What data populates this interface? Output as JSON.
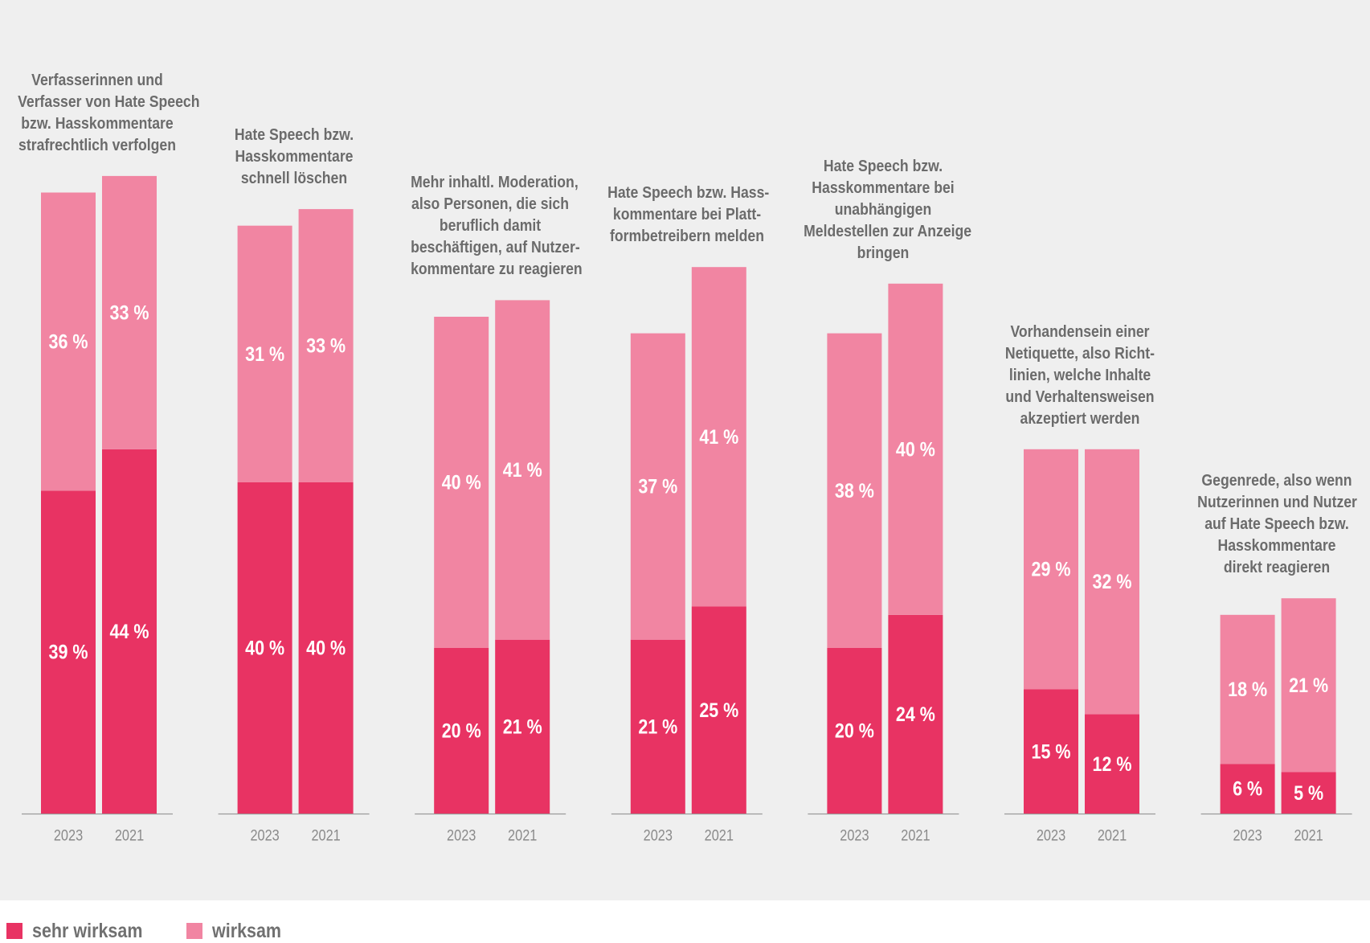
{
  "chart_data": {
    "type": "bar",
    "stacked": true,
    "ylim": [
      0,
      100
    ],
    "series": [
      {
        "name": "sehr wirksam",
        "color": "#e83363"
      },
      {
        "name": "wirksam",
        "color": "#f185a2"
      }
    ],
    "groups": [
      {
        "title_lines": [
          "Verfasserinnen und",
          "Verfasser von Hate Speech",
          "bzw. Hasskommentare",
          "strafrechtlich verfolgen"
        ],
        "bars": [
          {
            "year": "2023",
            "sehr_wirksam": 39,
            "wirksam": 36,
            "sehr_wirksam_label": "39 %",
            "wirksam_label": "36 %"
          },
          {
            "year": "2021",
            "sehr_wirksam": 44,
            "wirksam": 33,
            "sehr_wirksam_label": "44 %",
            "wirksam_label": "33 %"
          }
        ]
      },
      {
        "title_lines": [
          "Hate Speech bzw.",
          "Hasskommentare",
          "schnell löschen"
        ],
        "bars": [
          {
            "year": "2023",
            "sehr_wirksam": 40,
            "wirksam": 31,
            "sehr_wirksam_label": "40 %",
            "wirksam_label": "31 %"
          },
          {
            "year": "2021",
            "sehr_wirksam": 40,
            "wirksam": 33,
            "sehr_wirksam_label": "40 %",
            "wirksam_label": "33 %"
          }
        ]
      },
      {
        "title_lines": [
          "Mehr inhaltl. Moderation,",
          "also Personen, die sich",
          "beruflich damit",
          "beschäftigen, auf Nutzer-",
          "kommentare zu reagieren"
        ],
        "bars": [
          {
            "year": "2023",
            "sehr_wirksam": 20,
            "wirksam": 40,
            "sehr_wirksam_label": "20 %",
            "wirksam_label": "40 %"
          },
          {
            "year": "2021",
            "sehr_wirksam": 21,
            "wirksam": 41,
            "sehr_wirksam_label": "21 %",
            "wirksam_label": "41 %"
          }
        ]
      },
      {
        "title_lines": [
          "Hate Speech bzw. Hass-",
          "kommentare bei Platt-",
          "formbetreibern melden"
        ],
        "bars": [
          {
            "year": "2023",
            "sehr_wirksam": 21,
            "wirksam": 37,
            "sehr_wirksam_label": "21 %",
            "wirksam_label": "37 %"
          },
          {
            "year": "2021",
            "sehr_wirksam": 25,
            "wirksam": 41,
            "sehr_wirksam_label": "25 %",
            "wirksam_label": "41 %"
          }
        ]
      },
      {
        "title_lines": [
          "Hate Speech bzw.",
          "Hasskommentare bei",
          "unabhängigen",
          "Meldestellen zur Anzeige",
          "bringen"
        ],
        "bars": [
          {
            "year": "2023",
            "sehr_wirksam": 20,
            "wirksam": 38,
            "sehr_wirksam_label": "20 %",
            "wirksam_label": "38 %"
          },
          {
            "year": "2021",
            "sehr_wirksam": 24,
            "wirksam": 40,
            "sehr_wirksam_label": "24 %",
            "wirksam_label": "40 %"
          }
        ]
      },
      {
        "title_lines": [
          "Vorhandensein einer",
          "Netiquette, also Richt-",
          "linien, welche Inhalte",
          "und Verhaltensweisen",
          "akzeptiert werden"
        ],
        "bars": [
          {
            "year": "2023",
            "sehr_wirksam": 15,
            "wirksam": 29,
            "sehr_wirksam_label": "15 %",
            "wirksam_label": "29 %"
          },
          {
            "year": "2021",
            "sehr_wirksam": 12,
            "wirksam": 32,
            "sehr_wirksam_label": "12 %",
            "wirksam_label": "32 %"
          }
        ]
      },
      {
        "title_lines": [
          "Gegenrede, also wenn",
          "Nutzerinnen und Nutzer",
          "auf Hate Speech bzw.",
          "Hasskommentare",
          "direkt reagieren"
        ],
        "bars": [
          {
            "year": "2023",
            "sehr_wirksam": 6,
            "wirksam": 18,
            "sehr_wirksam_label": "6 %",
            "wirksam_label": "18 %"
          },
          {
            "year": "2021",
            "sehr_wirksam": 5,
            "wirksam": 21,
            "sehr_wirksam_label": "5 %",
            "wirksam_label": "21 %"
          }
        ]
      }
    ]
  }
}
